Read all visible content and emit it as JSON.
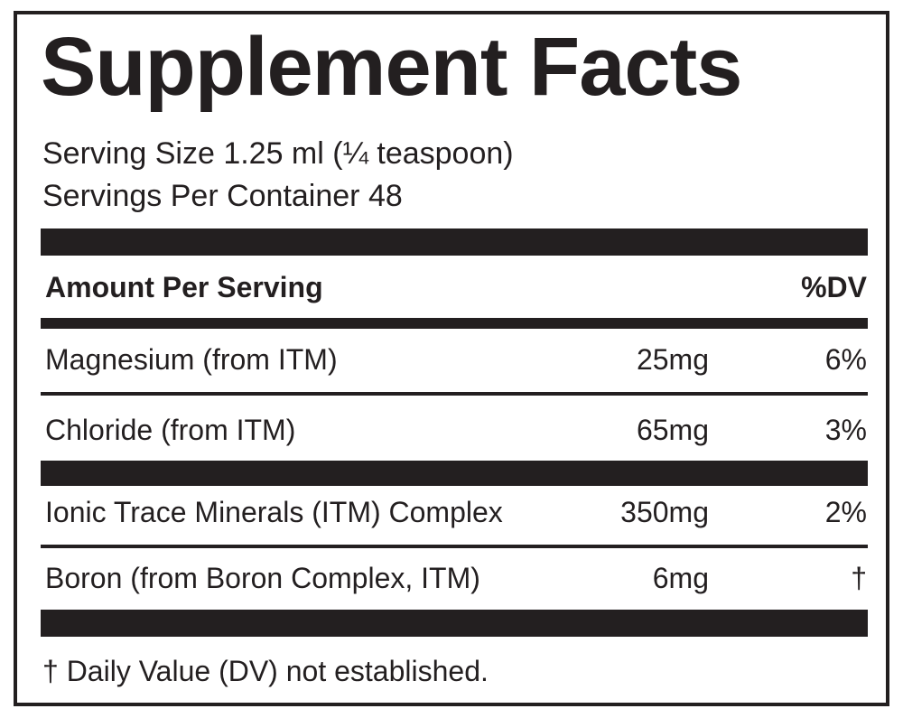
{
  "title": "Supplement Facts",
  "serving_size": "Serving Size 1.25 ml (¼ teaspoon)",
  "servings_per_container": "Servings Per Container 48",
  "header": {
    "amount": "Amount Per Serving",
    "dv": "%DV"
  },
  "rows": [
    {
      "name": "Magnesium (from ITM)",
      "amount": "25mg",
      "dv": "6%"
    },
    {
      "name": "Chloride (from ITM)",
      "amount": "65mg",
      "dv": "3%"
    },
    {
      "name": "Ionic Trace Minerals (ITM) Complex",
      "amount": "350mg",
      "dv": "2%"
    },
    {
      "name": "Boron (from Boron Complex, ITM)",
      "amount": "6mg",
      "dv": "†"
    }
  ],
  "footnote": "† Daily Value (DV) not established."
}
